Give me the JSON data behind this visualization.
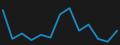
{
  "x": [
    0,
    1,
    2,
    3,
    4,
    5,
    6,
    7,
    8,
    9,
    10,
    11,
    12
  ],
  "y": [
    8.5,
    1.5,
    2.8,
    1.2,
    2.5,
    1.8,
    7.5,
    9.0,
    3.5,
    5.0,
    1.5,
    0.8,
    3.5
  ],
  "line_color": "#1a8ac4",
  "line_width": 1.3,
  "background_color": "#1a1a1a",
  "ylim": [
    0,
    11
  ],
  "xlim": [
    -0.3,
    12.3
  ]
}
